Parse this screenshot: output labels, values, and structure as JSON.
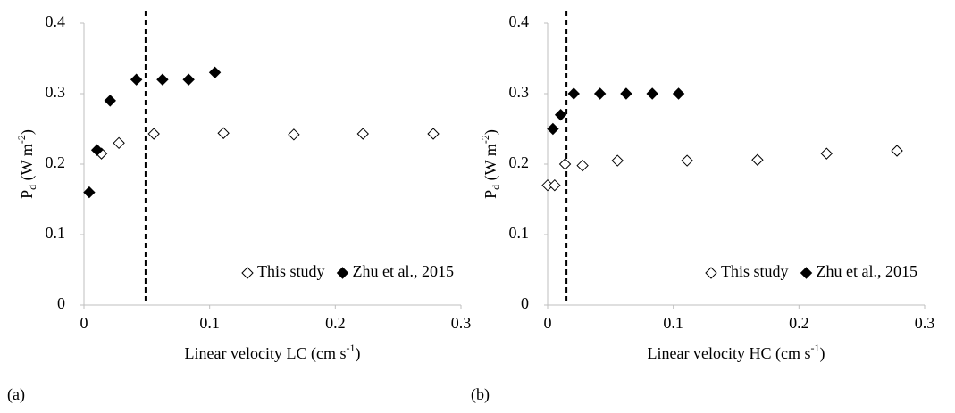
{
  "chart_data": [
    {
      "type": "scatter",
      "panel_label": "(a)",
      "xlabel": {
        "text": "Linear velocity LC (cm s",
        "sup": "-1",
        "end": ")"
      },
      "ylabel": {
        "text": "P",
        "sub": "d",
        "unit": " (W m",
        "sup": "-2",
        "end": ")"
      },
      "xlim": [
        0,
        0.3
      ],
      "xticks": [
        0,
        0.1,
        0.2,
        0.3
      ],
      "ylim": [
        0,
        0.4
      ],
      "yticks": [
        0,
        0.1,
        0.2,
        0.3,
        0.4
      ],
      "vline": 0.049,
      "legend": "lower right",
      "series": [
        {
          "name": "This study",
          "marker": "open-diamond",
          "color": "#000000",
          "x": [
            0.0139,
            0.0278,
            0.0556,
            0.111,
            0.167,
            0.222,
            0.278
          ],
          "values": [
            0.215,
            0.23,
            0.243,
            0.244,
            0.242,
            0.243,
            0.243
          ]
        },
        {
          "name": "Zhu et al., 2015",
          "marker": "filled-diamond",
          "color": "#000000",
          "x": [
            0.0042,
            0.0104,
            0.0208,
            0.0417,
            0.0625,
            0.0833,
            0.1042
          ],
          "values": [
            0.16,
            0.22,
            0.29,
            0.32,
            0.32,
            0.32,
            0.33
          ]
        }
      ]
    },
    {
      "type": "scatter",
      "panel_label": "(b)",
      "xlabel": {
        "text": "Linear velocity HC (cm s",
        "sup": "-1",
        "end": ")"
      },
      "ylabel": {
        "text": "P",
        "sub": "d",
        "unit": " (W m",
        "sup": "-2",
        "end": ")"
      },
      "xlim": [
        0,
        0.3
      ],
      "xticks": [
        0,
        0.1,
        0.2,
        0.3
      ],
      "ylim": [
        0,
        0.4
      ],
      "yticks": [
        0,
        0.1,
        0.2,
        0.3,
        0.4
      ],
      "vline": 0.015,
      "legend": "lower right",
      "series": [
        {
          "name": "This study",
          "marker": "open-diamond",
          "color": "#000000",
          "x": [
            0,
            0.0056,
            0.0139,
            0.0278,
            0.0556,
            0.111,
            0.167,
            0.222,
            0.278
          ],
          "values": [
            0.17,
            0.17,
            0.2,
            0.198,
            0.205,
            0.205,
            0.206,
            0.215,
            0.219
          ]
        },
        {
          "name": "Zhu et al., 2015",
          "marker": "filled-diamond",
          "color": "#000000",
          "x": [
            0.0042,
            0.0104,
            0.0208,
            0.0417,
            0.0625,
            0.0833,
            0.1042
          ],
          "values": [
            0.25,
            0.27,
            0.3,
            0.3,
            0.3,
            0.3,
            0.3
          ]
        }
      ]
    }
  ]
}
